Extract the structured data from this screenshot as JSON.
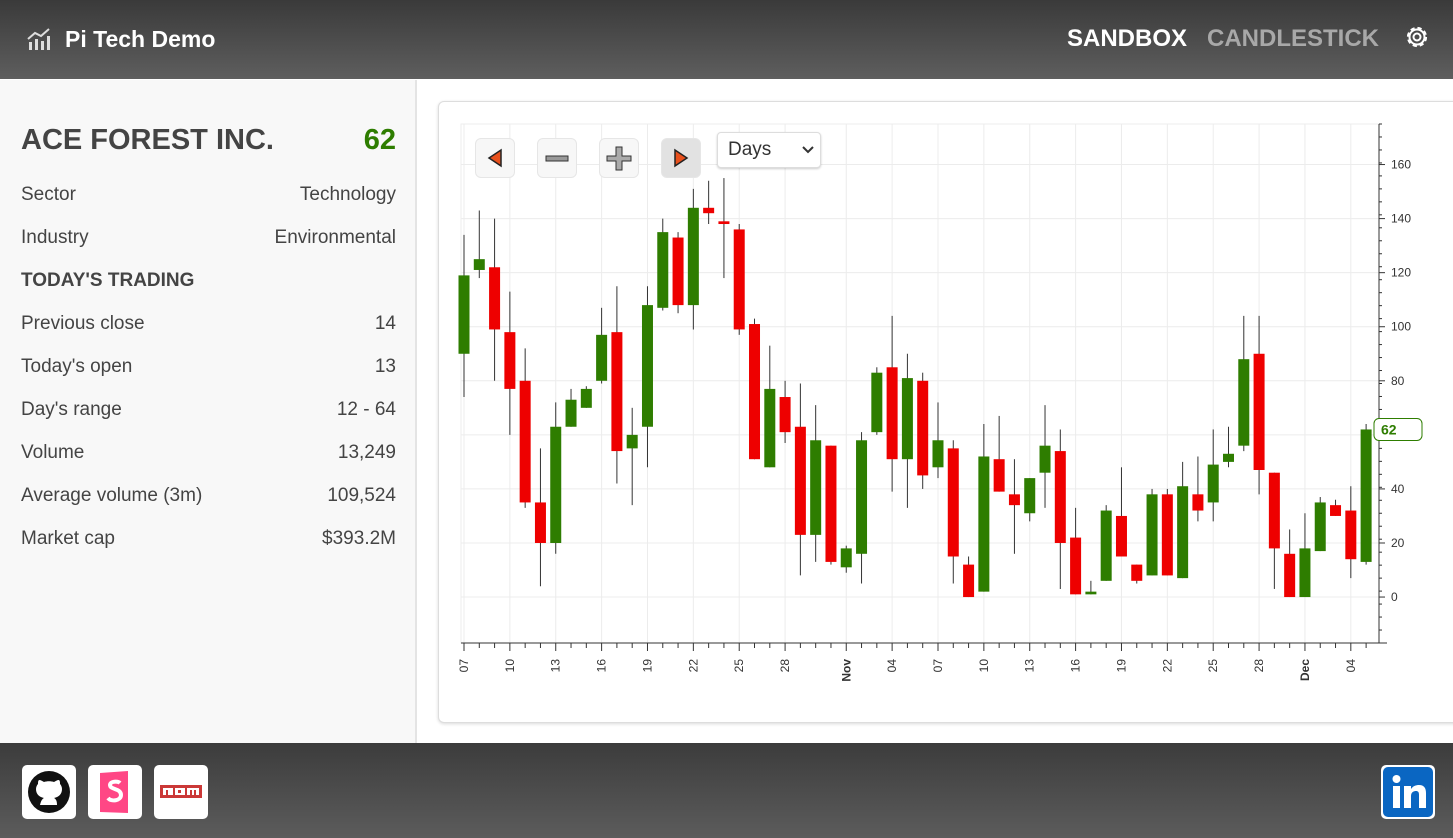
{
  "header": {
    "title": "Pi Tech Demo",
    "nav": [
      "SANDBOX",
      "CANDLESTICK"
    ]
  },
  "stock": {
    "name": "ACE FOREST INC.",
    "price": 62,
    "info": [
      [
        "Sector",
        "Technology"
      ],
      [
        "Industry",
        "Environmental"
      ]
    ],
    "section": "TODAY'S TRADING",
    "trading": [
      [
        "Previous close",
        14
      ],
      [
        "Today's open",
        13
      ],
      [
        "Day's range",
        "12 - 64"
      ],
      [
        "Volume",
        "13,249"
      ],
      [
        "Average volume (3m)",
        "109,524"
      ],
      [
        "Market cap",
        "$393.2M"
      ]
    ]
  },
  "chart_controls": {
    "interval": "Days"
  },
  "chart_data": {
    "type": "candlestick",
    "categories": [
      "07",
      null,
      null,
      "10",
      null,
      null,
      "13",
      null,
      null,
      "16",
      null,
      null,
      "19",
      null,
      null,
      "22",
      null,
      null,
      "25",
      null,
      null,
      "28",
      null,
      null,
      null,
      "Nov",
      null,
      null,
      "04",
      null,
      null,
      "07",
      null,
      null,
      "10",
      null,
      null,
      "13",
      null,
      null,
      "16",
      null,
      null,
      "19",
      null,
      null,
      "22",
      null,
      null,
      "25",
      null,
      null,
      "28",
      null,
      null,
      "Dec",
      null,
      null,
      "04",
      null
    ],
    "open": [
      90,
      121,
      122,
      98,
      80,
      35,
      20,
      63,
      70,
      80,
      98,
      55,
      63,
      107,
      133,
      108,
      144,
      139,
      136,
      101,
      48,
      74,
      63,
      23,
      56,
      11,
      16,
      61,
      85,
      51,
      80,
      48,
      55,
      12,
      2,
      51,
      38,
      31,
      46,
      54,
      22,
      1,
      6,
      30,
      12,
      8,
      38,
      7,
      38,
      35,
      50,
      56,
      90,
      46,
      16,
      0,
      17,
      34,
      32,
      13
    ],
    "high": [
      134,
      143,
      140,
      113,
      92,
      55,
      72,
      77,
      78,
      107,
      115,
      70,
      115,
      140,
      135,
      151,
      154,
      155,
      138,
      103,
      93,
      80,
      79,
      71,
      56,
      19,
      61,
      85,
      104,
      90,
      83,
      72,
      58,
      15,
      64,
      67,
      51,
      44,
      71,
      62,
      33,
      6,
      34,
      48,
      12,
      40,
      40,
      50,
      52,
      62,
      63,
      104,
      104,
      46,
      25,
      31,
      37,
      36,
      41,
      64
    ],
    "low": [
      74,
      118,
      80,
      60,
      33,
      4,
      16,
      63,
      70,
      79,
      42,
      34,
      48,
      106,
      105,
      99,
      138,
      118,
      97,
      51,
      48,
      57,
      8,
      13,
      12,
      9,
      5,
      60,
      39,
      33,
      40,
      44,
      5,
      0,
      2,
      39,
      16,
      28,
      33,
      3,
      1,
      1,
      6,
      15,
      5,
      8,
      8,
      7,
      28,
      28,
      48,
      54,
      38,
      3,
      0,
      0,
      17,
      30,
      7,
      12
    ],
    "close": [
      119,
      125,
      99,
      77,
      35,
      20,
      63,
      73,
      77,
      97,
      54,
      60,
      108,
      135,
      108,
      144,
      142,
      138,
      99,
      51,
      77,
      61,
      23,
      58,
      13,
      18,
      58,
      83,
      51,
      81,
      45,
      58,
      15,
      0,
      52,
      39,
      34,
      44,
      56,
      20,
      1,
      2,
      32,
      15,
      6,
      38,
      8,
      41,
      32,
      49,
      53,
      88,
      47,
      18,
      0,
      18,
      35,
      30,
      14,
      62
    ],
    "up_color": "#2e7d00",
    "down_color": "#ee0000",
    "ylim": [
      -17,
      175
    ],
    "yticks": [
      0,
      20,
      40,
      60,
      80,
      100,
      120,
      140,
      160
    ],
    "grid": true
  }
}
